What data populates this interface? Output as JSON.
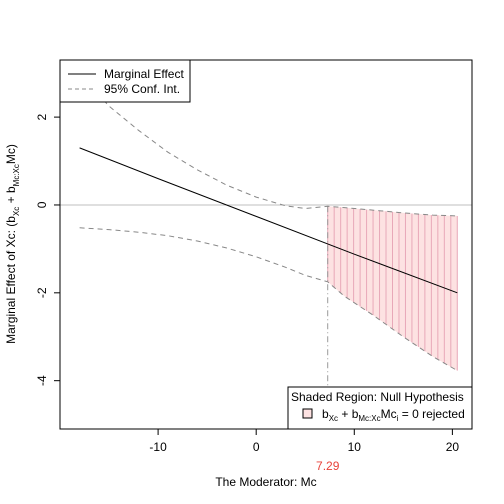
{
  "chart_data": {
    "type": "line",
    "title": "",
    "xlabel": "The Moderator:  Mc",
    "ylabel": {
      "prefix": "Marginal Effect of Xc:   (b",
      "sub1": "Xc",
      "mid": " + b",
      "sub2": "Mc:Xc",
      "suffix": "Mc)"
    },
    "xlim": [
      -20,
      22
    ],
    "ylim": [
      -5.1,
      3.3
    ],
    "xticks": [
      -10,
      0,
      10,
      20
    ],
    "xtick_labels": [
      "-10",
      "0",
      "10",
      "20"
    ],
    "yticks": [
      -4,
      -2,
      0,
      2
    ],
    "ytick_labels": [
      "-4",
      "-2",
      "0",
      "2"
    ],
    "reference_line_y": 0,
    "series": [
      {
        "name": "Marginal Effect",
        "style": "solid",
        "x": [
          -18,
          -10,
          0,
          10,
          20.5
        ],
        "y": [
          1.3,
          0.6,
          -0.26,
          -1.12,
          -2.0
        ]
      },
      {
        "name": "95% Conf. Int.",
        "style": "dashed",
        "role": "upper",
        "x": [
          -18,
          -15,
          -12,
          -9,
          -6,
          -3,
          0,
          3,
          5,
          7.29,
          9,
          12,
          15,
          18,
          20.5
        ],
        "y": [
          3.0,
          2.25,
          1.7,
          1.2,
          0.8,
          0.45,
          0.18,
          -0.02,
          -0.08,
          -0.03,
          -0.06,
          -0.12,
          -0.18,
          -0.23,
          -0.25
        ]
      },
      {
        "name": "95% Conf. Int.",
        "style": "dashed",
        "role": "lower",
        "x": [
          -18,
          -15,
          -12,
          -9,
          -6,
          -3,
          0,
          3,
          5,
          7.29,
          9,
          12,
          15,
          18,
          20.5
        ],
        "y": [
          -0.52,
          -0.56,
          -0.62,
          -0.7,
          -0.82,
          -0.98,
          -1.18,
          -1.42,
          -1.6,
          -1.75,
          -2.08,
          -2.52,
          -3.0,
          -3.45,
          -3.77
        ]
      }
    ],
    "shaded_region": {
      "x_start": 7.29,
      "x_end": 20.5,
      "color": "#fde2e2",
      "line_color": "#e8a8b8"
    },
    "marker": {
      "x": 7.29,
      "label": "7.29",
      "color": "#e8423a"
    },
    "legend": {
      "placement": "top-left",
      "entries": [
        {
          "label": "Marginal Effect",
          "style": "solid"
        },
        {
          "label": "95% Conf. Int.",
          "style": "dashed"
        }
      ]
    },
    "note": {
      "placement": "bottom-right",
      "title": "Shaded Region: Null Hypothesis",
      "text_b": "b",
      "text_sub1": "Xc",
      "text_plus": " + b",
      "text_sub2": "Mc:Xc",
      "text_mc": "Mc",
      "text_subi": "i",
      "text_tail": " = 0  rejected"
    }
  }
}
